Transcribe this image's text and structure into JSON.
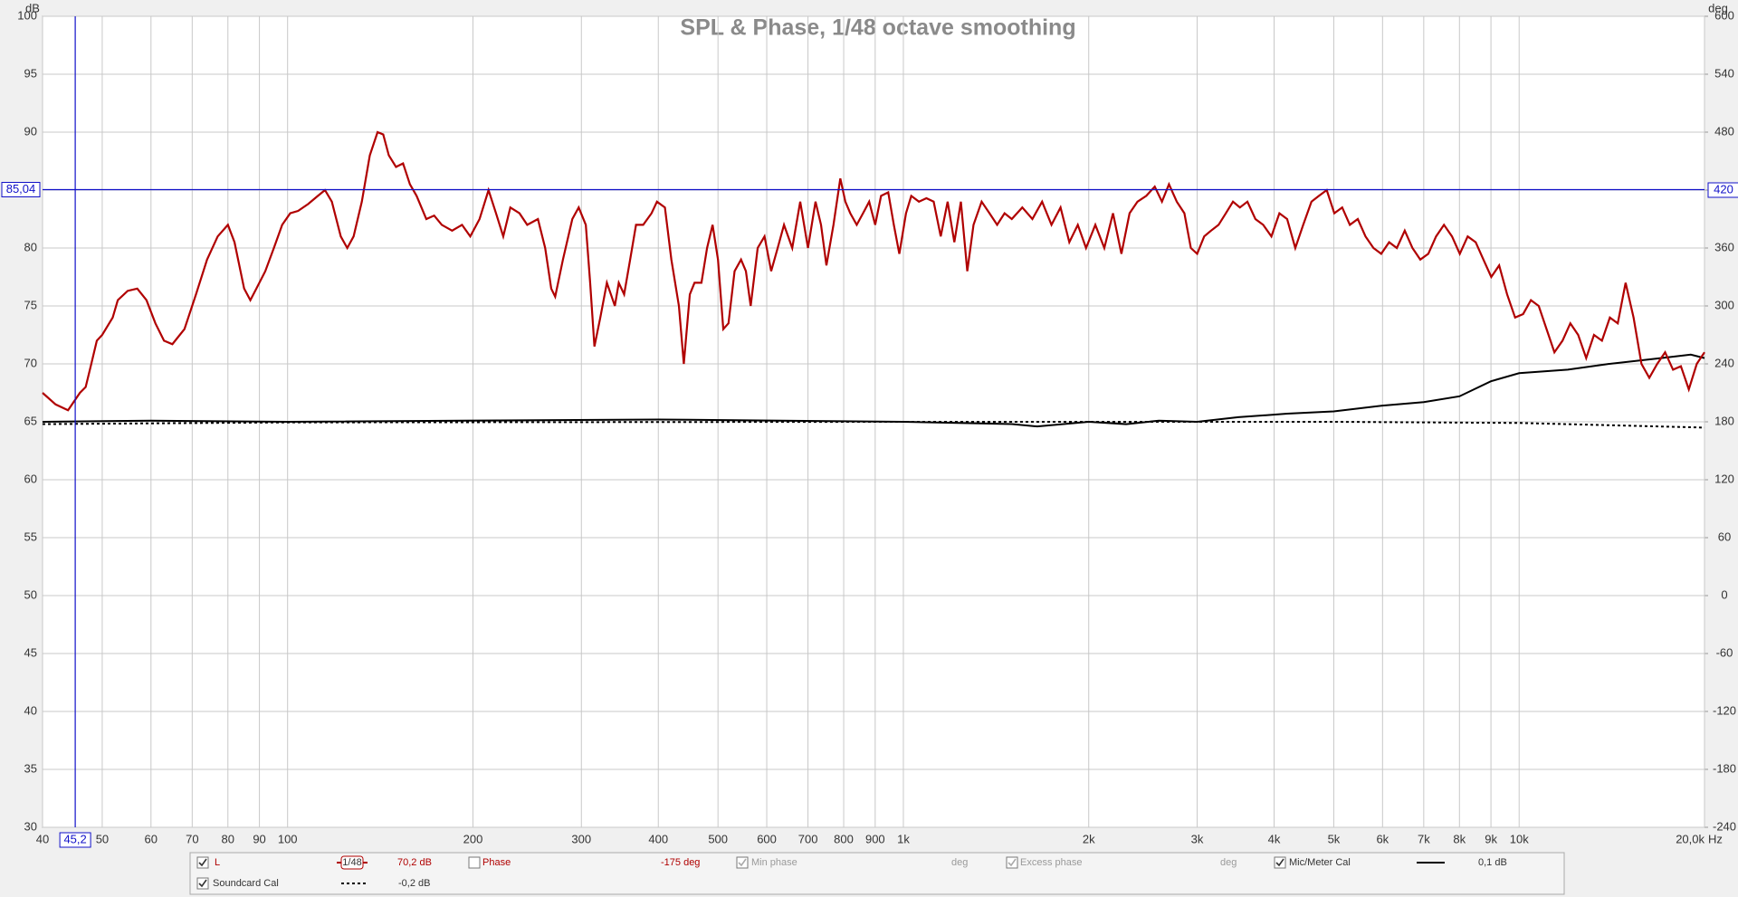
{
  "chart_data": {
    "type": "line",
    "title": "SPL & Phase, 1/48 octave smoothing",
    "x_unit": "Hz",
    "y_unit": "dB",
    "y2_unit": "deg",
    "xscale": "log",
    "grid": true,
    "xlim": [
      40,
      20000
    ],
    "xticks": [
      40,
      50,
      60,
      70,
      80,
      90,
      100,
      200,
      300,
      400,
      500,
      600,
      700,
      800,
      900,
      {
        "value": 1000,
        "label": "1k"
      },
      {
        "value": 2000,
        "label": "2k"
      },
      {
        "value": 3000,
        "label": "3k"
      },
      {
        "value": 4000,
        "label": "4k"
      },
      {
        "value": 5000,
        "label": "5k"
      },
      {
        "value": 6000,
        "label": "6k"
      },
      {
        "value": 7000,
        "label": "7k"
      },
      {
        "value": 8000,
        "label": "8k"
      },
      {
        "value": 9000,
        "label": "9k"
      },
      {
        "value": 10000,
        "label": "10k"
      },
      {
        "value": 20000,
        "label": "20,0k"
      }
    ],
    "ylim": [
      30,
      100
    ],
    "yticks": [
      30,
      35,
      40,
      45,
      50,
      55,
      60,
      65,
      70,
      75,
      80,
      85,
      90,
      95,
      100
    ],
    "y2lim": [
      -240,
      600
    ],
    "y2ticks": [
      -240,
      -180,
      -120,
      -60,
      0,
      60,
      120,
      180,
      240,
      300,
      360,
      420,
      480,
      540,
      600
    ],
    "cursor": {
      "x": {
        "value": 45.2,
        "label": "45,2"
      },
      "y": {
        "value": 85.04,
        "label": "85,04"
      },
      "y2": 420,
      "color": "#1010c8"
    },
    "series": [
      {
        "name": "L",
        "color": "#b00000",
        "dash": "solid",
        "checked": true,
        "smoothing": "1/48",
        "readout": "70,2 dB",
        "x": [
          40,
          42,
          44,
          46,
          47,
          48,
          49,
          50,
          52,
          53,
          55,
          57,
          59,
          61,
          63,
          65,
          68,
          71,
          74,
          77,
          80,
          82,
          85,
          87,
          89,
          92,
          95,
          98,
          101,
          104,
          108,
          112,
          115,
          118,
          122,
          125,
          128,
          132,
          136,
          140,
          143,
          146,
          150,
          154,
          158,
          162,
          168,
          173,
          178,
          185,
          192,
          198,
          205,
          212,
          218,
          224,
          230,
          238,
          245,
          255,
          262,
          268,
          272,
          280,
          290,
          297,
          305,
          310,
          315,
          322,
          330,
          335,
          340,
          345,
          352,
          360,
          368,
          378,
          390,
          398,
          410,
          420,
          432,
          440,
          450,
          458,
          470,
          480,
          490,
          500,
          510,
          520,
          532,
          545,
          555,
          565,
          580,
          595,
          610,
          625,
          640,
          660,
          680,
          700,
          720,
          735,
          750,
          770,
          790,
          805,
          820,
          840,
          860,
          880,
          900,
          920,
          945,
          965,
          985,
          1010,
          1030,
          1060,
          1090,
          1120,
          1150,
          1180,
          1210,
          1240,
          1270,
          1300,
          1340,
          1380,
          1420,
          1460,
          1500,
          1560,
          1620,
          1680,
          1740,
          1800,
          1860,
          1920,
          1980,
          2050,
          2120,
          2190,
          2260,
          2330,
          2400,
          2480,
          2560,
          2630,
          2700,
          2780,
          2860,
          2930,
          3000,
          3080,
          3160,
          3250,
          3340,
          3430,
          3520,
          3620,
          3730,
          3840,
          3960,
          4080,
          4200,
          4330,
          4460,
          4600,
          4730,
          4870,
          5010,
          5160,
          5310,
          5470,
          5630,
          5800,
          5970,
          6150,
          6330,
          6520,
          6710,
          6910,
          7120,
          7330,
          7550,
          7780,
          8010,
          8250,
          8500,
          8750,
          9010,
          9280,
          9560,
          9850,
          10150,
          10450,
          10760,
          11080,
          11410,
          11760,
          12110,
          12470,
          12850,
          13230,
          13630,
          14040,
          14460,
          14890,
          15340,
          15800,
          16270,
          16760,
          17260,
          17780,
          18310,
          18860,
          19430,
          20000
        ],
        "values": [
          67.5,
          66.5,
          66,
          67.5,
          68,
          70,
          72,
          72.5,
          74,
          75.5,
          76.3,
          76.5,
          75.5,
          73.5,
          72,
          71.7,
          73,
          76,
          79,
          81,
          82,
          80.5,
          76.5,
          75.5,
          76.5,
          78,
          80,
          82,
          83,
          83.2,
          83.8,
          84.5,
          85,
          84,
          81,
          80,
          81,
          84,
          88,
          90,
          89.8,
          88,
          87,
          87.3,
          85.5,
          84.5,
          82.5,
          82.8,
          82,
          81.5,
          82,
          81,
          82.5,
          85,
          83,
          81,
          83.5,
          83,
          82,
          82.5,
          80,
          76.5,
          75.8,
          79,
          82.5,
          83.5,
          82,
          77,
          71.5,
          74,
          77,
          76,
          75,
          77,
          76,
          79,
          82,
          82,
          83,
          84,
          83.5,
          79,
          75,
          70,
          76,
          77,
          77,
          80,
          82,
          79,
          73,
          73.5,
          78,
          79,
          78,
          75,
          80,
          81,
          78,
          80,
          82,
          80,
          84,
          80,
          84,
          82,
          78.5,
          82,
          86,
          84,
          83,
          82,
          83,
          84,
          82,
          84.5,
          84.8,
          82,
          79.5,
          83,
          84.5,
          84,
          84.3,
          84,
          81,
          84,
          80.5,
          84,
          78,
          82,
          84,
          83,
          82,
          83,
          82.5,
          83.5,
          82.5,
          84,
          82,
          83.5,
          80.5,
          82,
          80,
          82,
          80,
          83,
          79.5,
          83,
          84,
          84.5,
          85.3,
          84,
          85.5,
          84,
          83,
          80,
          79.5,
          81,
          81.5,
          82,
          83,
          84,
          83.5,
          84,
          82.5,
          82,
          81,
          83,
          82.5,
          80,
          82,
          84,
          84.5,
          85,
          83,
          83.5,
          82,
          82.5,
          81,
          80,
          79.5,
          80.5,
          80,
          81.5,
          80,
          79,
          79.5,
          81,
          82,
          81,
          79.5,
          81,
          80.5,
          79,
          77.5,
          78.5,
          76,
          74,
          74.3,
          75.5,
          75,
          73,
          71,
          72,
          73.5,
          72.5,
          70.5,
          72.5,
          72,
          74,
          73.5,
          77,
          74,
          70,
          68.8,
          70,
          71,
          69.5,
          69.8,
          67.8,
          70,
          71
        ]
      },
      {
        "name": "Mic/Meter Cal",
        "color": "#000000",
        "dash": "solid",
        "checked": true,
        "readout": "0,1 dB",
        "x": [
          40,
          60,
          100,
          400,
          1000,
          1500,
          1650,
          2000,
          2300,
          2600,
          3000,
          3500,
          4200,
          5000,
          6000,
          7000,
          8000,
          9000,
          10000,
          12000,
          14000,
          17000,
          19000,
          20000
        ],
        "values": [
          65,
          65.1,
          65,
          65.2,
          65,
          64.8,
          64.6,
          65,
          64.8,
          65.1,
          65,
          65.4,
          65.7,
          65.9,
          66.4,
          66.7,
          67.2,
          68.5,
          69.2,
          69.5,
          70,
          70.5,
          70.8,
          70.5
        ]
      },
      {
        "name": "Soundcard Cal",
        "color": "#000000",
        "dash": "dotted",
        "checked": true,
        "readout": "-0,2 dB",
        "x": [
          40,
          100,
          1000,
          5000,
          10000,
          20000
        ],
        "values": [
          64.8,
          64.95,
          65,
          65,
          64.9,
          64.5
        ]
      }
    ],
    "legend_extra": [
      {
        "name": "Phase",
        "readout": "-175 deg",
        "checked": false,
        "color": "#b00000"
      },
      {
        "name": "Min phase",
        "readout": "deg",
        "checked": true,
        "color": "#9a9a9a"
      },
      {
        "name": "Excess phase",
        "readout": "deg",
        "checked": true,
        "color": "#9a9a9a"
      }
    ]
  }
}
